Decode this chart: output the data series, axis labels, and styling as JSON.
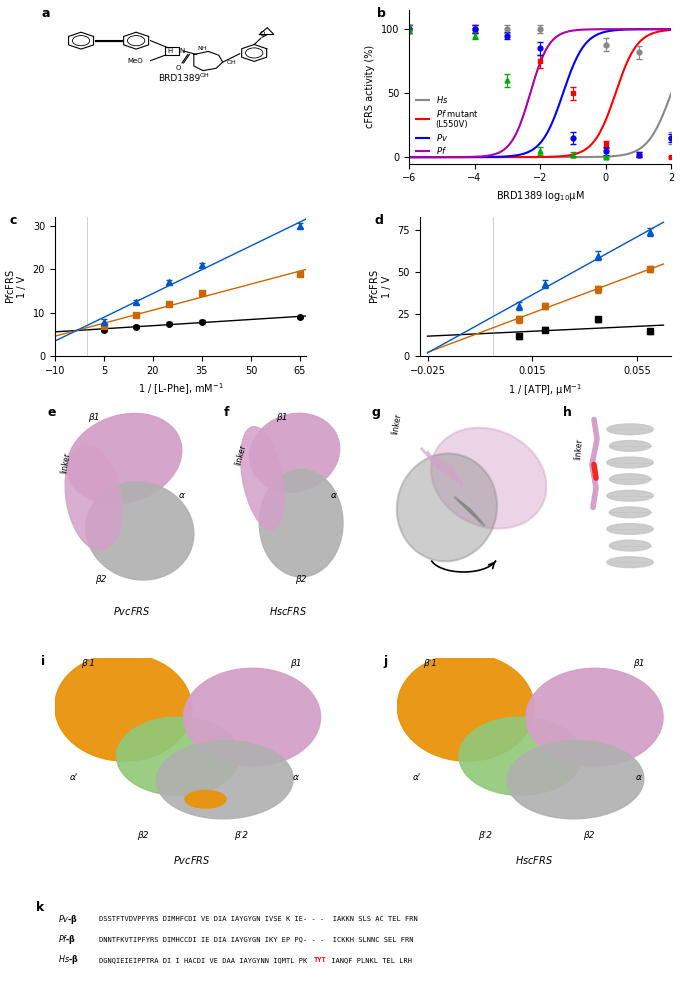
{
  "panel_b": {
    "xlabel": "BRD1389 log$_{10}$μM",
    "ylabel": "cFRS activity (%)",
    "xlim": [
      -6,
      2
    ],
    "ylim": [
      -5,
      115
    ],
    "xticks": [
      -6,
      -4,
      -2,
      0,
      2
    ],
    "yticks": [
      0,
      50,
      100
    ],
    "hs": {
      "color": "#888888",
      "ec50": 2.0,
      "hill": 1.2,
      "x": [
        -6,
        -4,
        -3,
        -2,
        0,
        1,
        2
      ],
      "y": [
        100,
        100,
        100,
        100,
        88,
        82,
        15
      ],
      "err": [
        3,
        3,
        3,
        3,
        5,
        5,
        5
      ],
      "marker": "o"
    },
    "pfm": {
      "color": "#ff0000",
      "ec50": 0.3,
      "hill": 1.3,
      "x": [
        -6,
        -4,
        -2,
        -1,
        0,
        1,
        2
      ],
      "y": [
        100,
        100,
        75,
        50,
        10,
        2,
        0
      ],
      "err": [
        3,
        3,
        5,
        5,
        3,
        2,
        1
      ],
      "marker": "s"
    },
    "pv": {
      "color": "#0000ff",
      "ec50": -1.3,
      "hill": 1.3,
      "x": [
        -6,
        -4,
        -3,
        -2,
        -1,
        0,
        1,
        2
      ],
      "y": [
        100,
        100,
        95,
        85,
        15,
        5,
        2,
        15
      ],
      "err": [
        3,
        3,
        3,
        5,
        5,
        3,
        2,
        3
      ],
      "marker": "o"
    },
    "pf": {
      "color": "#aa00aa",
      "ec50": -2.3,
      "hill": 1.5,
      "x": [
        -6,
        -4,
        -3,
        -2,
        -1,
        0
      ],
      "y": [
        100,
        95,
        60,
        5,
        2,
        0
      ],
      "err": [
        3,
        3,
        5,
        3,
        2,
        1
      ],
      "marker": "^",
      "data_color": "#00aa00"
    }
  },
  "panel_c": {
    "xlabel": "1 / [L-Phe], mM$^{-1}$",
    "ylabel": "P$f$cFRS\n1 / V",
    "xlim": [
      -10,
      67
    ],
    "ylim": [
      0,
      32
    ],
    "xticks": [
      -10,
      5,
      20,
      35,
      50,
      65
    ],
    "yticks": [
      0,
      10,
      20,
      30
    ],
    "black": {
      "color": "#000000",
      "marker": "o",
      "x": [
        5,
        15,
        25,
        35,
        65
      ],
      "y": [
        6.1,
        6.8,
        7.5,
        8.0,
        9.0
      ],
      "yerr": 0.3
    },
    "orange": {
      "color": "#cc6600",
      "marker": "s",
      "x": [
        5,
        15,
        25,
        35,
        65
      ],
      "y": [
        7.0,
        9.5,
        12.0,
        14.5,
        19.0
      ],
      "yerr": 0.4
    },
    "blue": {
      "color": "#0055cc",
      "marker": "^",
      "x": [
        5,
        15,
        25,
        35,
        65
      ],
      "y": [
        8.0,
        12.5,
        17.0,
        21.0,
        30.0
      ],
      "yerr": 0.5
    }
  },
  "panel_d": {
    "xlabel": "1 / [ATP], μM$^{-1}$",
    "ylabel": "P$f$cFRS\n1 / V",
    "xlim": [
      -0.028,
      0.068
    ],
    "ylim": [
      0,
      83
    ],
    "xticks": [
      -0.025,
      0.015,
      0.055
    ],
    "yticks": [
      0,
      25,
      50,
      75
    ],
    "black": {
      "color": "#000000",
      "marker": "s",
      "x": [
        0.01,
        0.02,
        0.04,
        0.06
      ],
      "y": [
        12,
        16,
        22,
        15
      ],
      "yerr": 1.5
    },
    "orange": {
      "color": "#cc6600",
      "marker": "s",
      "x": [
        0.01,
        0.02,
        0.04,
        0.06
      ],
      "y": [
        22,
        30,
        40,
        52
      ],
      "yerr": 2.0
    },
    "blue": {
      "color": "#0055cc",
      "marker": "^",
      "x": [
        0.01,
        0.02,
        0.04,
        0.06
      ],
      "y": [
        30,
        43,
        60,
        74
      ],
      "yerr": 2.5
    }
  },
  "panel_k": {
    "seqs": [
      {
        "label": "$Pv$-β",
        "before": "DSSTFTVDVPFYRS DIMHFCDI VE DIA IAYGYGN IVSE K IE- - -  IAKKN SLS AC TEL FRN",
        "highlight": null,
        "after": null
      },
      {
        "label": "$Pf$-β",
        "before": "DNNTFKVTIPFYRS DIMHCCDI IE DIA IAYGYGN IKY EP PQ- - -  ICKKH SLNNC SEL FRN",
        "highlight": null,
        "after": null
      },
      {
        "label": "$Hs$-β",
        "before": "DGNQIEIEIPPTRA DI I HACDI VE DAA IAYGYNN IQMTL PK",
        "highlight": "TYT",
        "after": " IANQF PLNKL TEL LRH"
      }
    ],
    "highlight_color": "#ff0000"
  }
}
